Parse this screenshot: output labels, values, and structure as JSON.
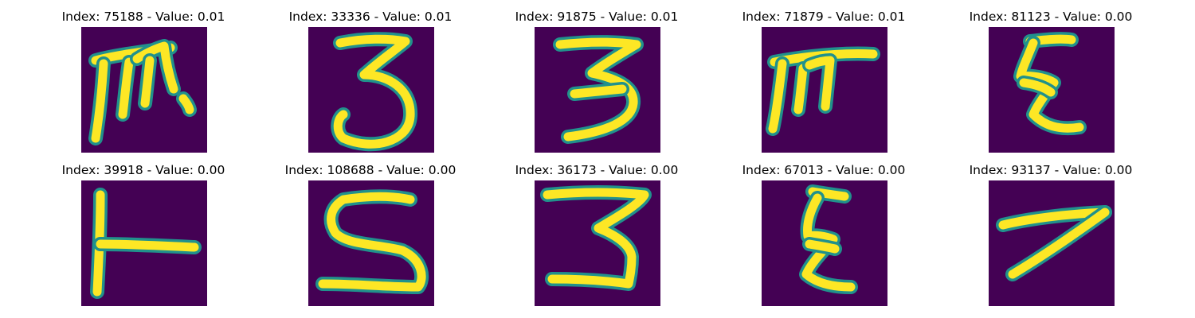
{
  "chart_data": {
    "type": "image-grid",
    "colors": {
      "background": "#440154",
      "stroke_edge": "#21918c",
      "stroke_core": "#fde725"
    },
    "images": [
      {
        "title": "Index: 75188 - Value: 0.01",
        "index": 75188,
        "value": 0.01,
        "glyph": "m-hook"
      },
      {
        "title": "Index: 33336 - Value: 0.01",
        "index": 33336,
        "value": 0.01,
        "glyph": "3"
      },
      {
        "title": "Index: 91875 - Value: 0.01",
        "index": 91875,
        "value": 0.01,
        "glyph": "3"
      },
      {
        "title": "Index: 71879 - Value: 0.01",
        "index": 71879,
        "value": 0.01,
        "glyph": "pi-like"
      },
      {
        "title": "Index: 81123 - Value: 0.00",
        "index": 81123,
        "value": 0.0,
        "glyph": "zigzag"
      },
      {
        "title": "Index: 39918 - Value: 0.00",
        "index": 39918,
        "value": 0.0,
        "glyph": "T-sideways"
      },
      {
        "title": "Index: 108688 - Value: 0.00",
        "index": 108688,
        "value": 0.0,
        "glyph": "S"
      },
      {
        "title": "Index: 36173 - Value: 0.00",
        "index": 36173,
        "value": 0.0,
        "glyph": "3"
      },
      {
        "title": "Index: 67013 - Value: 0.00",
        "index": 67013,
        "value": 0.0,
        "glyph": "zigzag"
      },
      {
        "title": "Index: 93137 - Value: 0.00",
        "index": 93137,
        "value": 0.0,
        "glyph": "7"
      }
    ]
  }
}
